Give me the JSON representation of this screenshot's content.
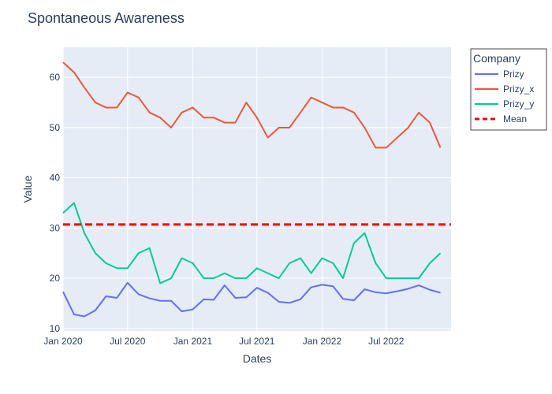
{
  "chart_data": {
    "type": "line",
    "title": "Spontaneous Awareness",
    "xlabel": "Dates",
    "ylabel": "Value",
    "x_range": [
      "2020-01-01",
      "2022-12-31"
    ],
    "ylim": [
      9.5,
      66
    ],
    "grid": true,
    "legend": {
      "title": "Company",
      "placement": "right"
    },
    "x_ticks": [
      {
        "date": "2020-01-01",
        "label": "Jan 2020"
      },
      {
        "date": "2020-07-01",
        "label": "Jul 2020"
      },
      {
        "date": "2021-01-01",
        "label": "Jan 2021"
      },
      {
        "date": "2021-07-01",
        "label": "Jul 2021"
      },
      {
        "date": "2022-01-01",
        "label": "Jan 2022"
      },
      {
        "date": "2022-07-01",
        "label": "Jul 2022"
      }
    ],
    "y_ticks": [
      10,
      20,
      30,
      40,
      50,
      60
    ],
    "x": [
      "2020-01-01",
      "2020-02-01",
      "2020-03-01",
      "2020-04-01",
      "2020-05-01",
      "2020-06-01",
      "2020-07-01",
      "2020-08-01",
      "2020-09-01",
      "2020-10-01",
      "2020-11-01",
      "2020-12-01",
      "2021-01-01",
      "2021-02-01",
      "2021-03-01",
      "2021-04-01",
      "2021-05-01",
      "2021-06-01",
      "2021-07-01",
      "2021-08-01",
      "2021-09-01",
      "2021-10-01",
      "2021-11-01",
      "2021-12-01",
      "2022-01-01",
      "2022-02-01",
      "2022-03-01",
      "2022-04-01",
      "2022-05-01",
      "2022-06-01",
      "2022-07-01",
      "2022-08-01",
      "2022-09-01",
      "2022-10-01",
      "2022-11-01",
      "2022-12-01"
    ],
    "series": [
      {
        "name": "Prizy",
        "color": "#636efa",
        "values": [
          17.3,
          12.8,
          12.4,
          13.6,
          16.4,
          16.1,
          19.1,
          16.8,
          16.0,
          15.5,
          15.5,
          13.4,
          13.8,
          15.8,
          15.7,
          18.6,
          16.1,
          16.2,
          18.1,
          17.1,
          15.3,
          15.1,
          15.8,
          18.2,
          18.7,
          18.4,
          15.9,
          15.6,
          17.8,
          17.2,
          17.0,
          17.4,
          17.9,
          18.6,
          17.7,
          17.1
        ]
      },
      {
        "name": "Prizy_x",
        "color": "#ef553b",
        "values": [
          63,
          61,
          58,
          55,
          54,
          54,
          57,
          56,
          53,
          52,
          50,
          53,
          54,
          52,
          52,
          51,
          51,
          55,
          52,
          48,
          50,
          50,
          53,
          56,
          55,
          54,
          54,
          53,
          50,
          46,
          46,
          48,
          50,
          53,
          51,
          46
        ]
      },
      {
        "name": "Prizy_y",
        "color": "#00cc96",
        "values": [
          33,
          35,
          29,
          25,
          23,
          22,
          22,
          25,
          26,
          19,
          20,
          24,
          23,
          20,
          20,
          21,
          20,
          20,
          22,
          21,
          20,
          23,
          24,
          21,
          24,
          23,
          20,
          27,
          29,
          23,
          20,
          20,
          20,
          20,
          23,
          25
        ]
      }
    ],
    "mean": {
      "name": "Mean",
      "color": "#ff0000",
      "value": 30.7
    }
  }
}
